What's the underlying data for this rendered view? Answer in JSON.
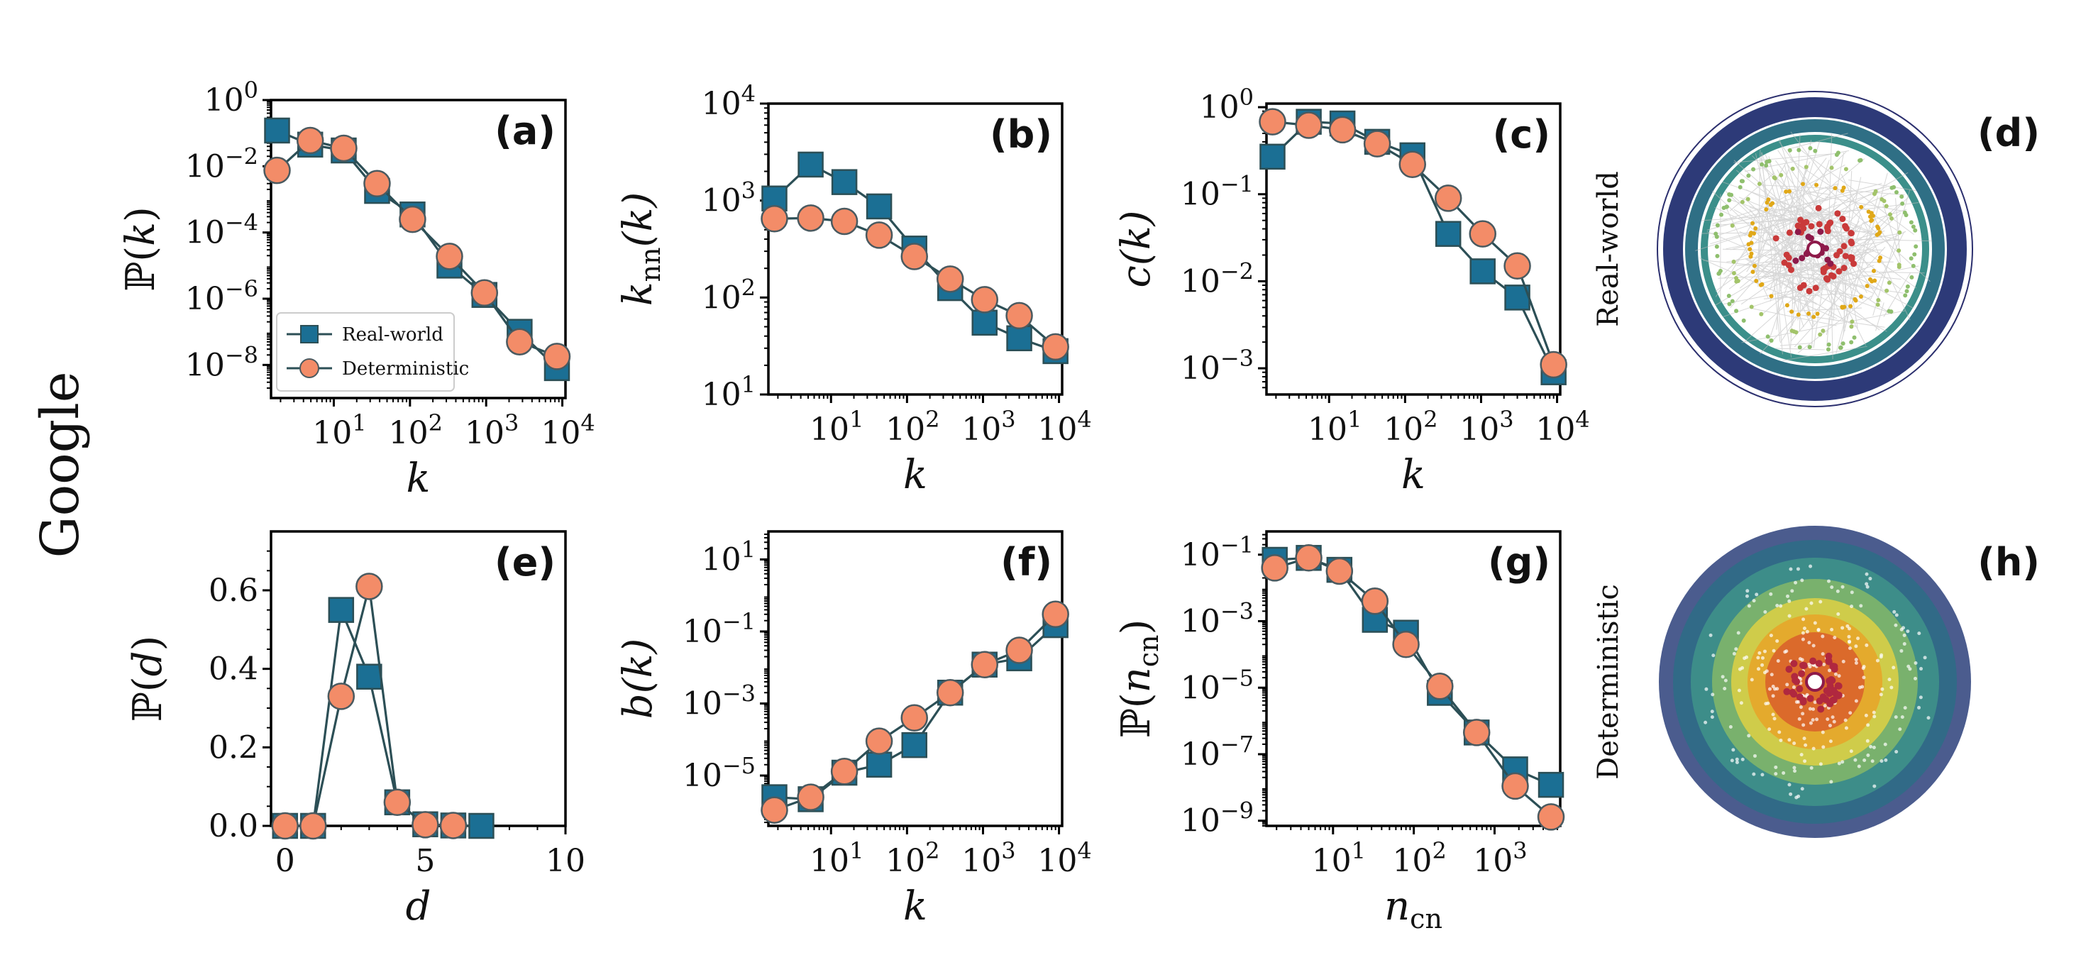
{
  "figure": {
    "row_label": "Google",
    "colors": {
      "real": "#1b6f94",
      "det": "#f38c68",
      "line": "#2c4f56",
      "edge": "#4a5a60"
    },
    "legend": {
      "real": "Real-world",
      "det": "Deterministic",
      "placement": "lower-left"
    }
  },
  "chart_data": [
    {
      "id": "a",
      "panel_label": "(a)",
      "type": "line",
      "xscale": "log",
      "yscale": "log",
      "xlabel": "k",
      "ylabel": "ℙ(k)",
      "xlim": [
        1.5,
        11000
      ],
      "ylim": [
        1e-09,
        1
      ],
      "xticks": [
        {
          "v": 10,
          "b": "10",
          "e": "1"
        },
        {
          "v": 100,
          "b": "10",
          "e": "2"
        },
        {
          "v": 1000,
          "b": "10",
          "e": "3"
        },
        {
          "v": 10000,
          "b": "10",
          "e": "4"
        }
      ],
      "yticks": [
        {
          "v": 1,
          "b": "10",
          "e": "0"
        },
        {
          "v": 0.01,
          "b": "10",
          "e": "−2"
        },
        {
          "v": 0.0001,
          "b": "10",
          "e": "−4"
        },
        {
          "v": 1e-06,
          "b": "10",
          "e": "−6"
        },
        {
          "v": 1e-08,
          "b": "10",
          "e": "−8"
        }
      ],
      "legend": true,
      "series": [
        {
          "name": "Real-world",
          "key": "real",
          "x": [
            1.8,
            4.9,
            13.5,
            37,
            108,
            330,
            950,
            2750,
            8500
          ],
          "y": [
            0.12,
            0.045,
            0.03,
            0.0018,
            0.00035,
            1e-05,
            1.3e-06,
            1e-07,
            8e-09
          ]
        },
        {
          "name": "Deterministic",
          "key": "det",
          "x": [
            1.8,
            4.9,
            13.5,
            37,
            108,
            330,
            950,
            2750,
            8500
          ],
          "y": [
            0.0075,
            0.06,
            0.035,
            0.003,
            0.00025,
            1.9e-05,
            1.5e-06,
            5e-08,
            1.8e-08
          ]
        }
      ]
    },
    {
      "id": "b",
      "panel_label": "(b)",
      "type": "line",
      "xscale": "log",
      "yscale": "log",
      "xlabel": "k",
      "ylabel": "k_nn(k)",
      "xlim": [
        1.5,
        11000
      ],
      "ylim": [
        10,
        10000
      ],
      "xticks": [
        {
          "v": 10,
          "b": "10",
          "e": "1"
        },
        {
          "v": 100,
          "b": "10",
          "e": "2"
        },
        {
          "v": 1000,
          "b": "10",
          "e": "3"
        },
        {
          "v": 10000,
          "b": "10",
          "e": "4"
        }
      ],
      "yticks": [
        {
          "v": 10,
          "b": "10",
          "e": "1"
        },
        {
          "v": 100,
          "b": "10",
          "e": "2"
        },
        {
          "v": 1000,
          "b": "10",
          "e": "3"
        },
        {
          "v": 10000,
          "b": "10",
          "e": "4"
        }
      ],
      "series": [
        {
          "name": "Real-world",
          "key": "real",
          "x": [
            1.8,
            5.4,
            15,
            43,
            125,
            370,
            1050,
            3000,
            9000
          ],
          "y": [
            1050,
            2350,
            1550,
            870,
            320,
            125,
            55,
            38,
            28
          ]
        },
        {
          "name": "Deterministic",
          "key": "det",
          "x": [
            1.8,
            5.4,
            15,
            43,
            125,
            370,
            1050,
            3000,
            9000
          ],
          "y": [
            650,
            660,
            610,
            440,
            265,
            155,
            95,
            65,
            31
          ]
        }
      ]
    },
    {
      "id": "c",
      "panel_label": "(c)",
      "type": "line",
      "xscale": "log",
      "yscale": "log",
      "xlabel": "k",
      "ylabel": "c(k)",
      "xlim": [
        1.5,
        11000
      ],
      "ylim": [
        0.0005,
        1.1
      ],
      "xticks": [
        {
          "v": 10,
          "b": "10",
          "e": "1"
        },
        {
          "v": 100,
          "b": "10",
          "e": "2"
        },
        {
          "v": 1000,
          "b": "10",
          "e": "3"
        },
        {
          "v": 10000,
          "b": "10",
          "e": "4"
        }
      ],
      "yticks": [
        {
          "v": 1,
          "b": "10",
          "e": "0"
        },
        {
          "v": 0.1,
          "b": "10",
          "e": "−1"
        },
        {
          "v": 0.01,
          "b": "10",
          "e": "−2"
        },
        {
          "v": 0.001,
          "b": "10",
          "e": "−3"
        }
      ],
      "series": [
        {
          "name": "Real-world",
          "key": "real",
          "x": [
            1.8,
            5.4,
            15,
            43,
            125,
            370,
            1050,
            3000,
            9000
          ],
          "y": [
            0.27,
            0.68,
            0.65,
            0.4,
            0.28,
            0.035,
            0.013,
            0.0065,
            0.0009
          ]
        },
        {
          "name": "Deterministic",
          "key": "det",
          "x": [
            1.8,
            5.4,
            15,
            43,
            125,
            370,
            1050,
            3000,
            9000
          ],
          "y": [
            0.68,
            0.62,
            0.55,
            0.38,
            0.22,
            0.09,
            0.035,
            0.015,
            0.0011
          ]
        }
      ]
    },
    {
      "id": "e",
      "panel_label": "(e)",
      "type": "line",
      "xscale": "linear",
      "yscale": "linear",
      "xlabel": "d",
      "ylabel": "ℙ(d)",
      "xlim": [
        -0.5,
        10
      ],
      "ylim": [
        0,
        0.75
      ],
      "xticks": [
        {
          "v": 0,
          "b": "0"
        },
        {
          "v": 5,
          "b": "5"
        },
        {
          "v": 10,
          "b": "10"
        }
      ],
      "yticks": [
        {
          "v": 0,
          "b": "0.0"
        },
        {
          "v": 0.2,
          "b": "0.2"
        },
        {
          "v": 0.4,
          "b": "0.4"
        },
        {
          "v": 0.6,
          "b": "0.6"
        }
      ],
      "series": [
        {
          "name": "Real-world",
          "key": "real",
          "x": [
            0,
            1,
            2,
            3,
            4,
            5,
            6,
            7
          ],
          "y": [
            0.0,
            0.0,
            0.55,
            0.38,
            0.06,
            0.004,
            0.001,
            0.0
          ]
        },
        {
          "name": "Deterministic",
          "key": "det",
          "x": [
            0,
            1,
            2,
            3,
            4,
            5,
            6
          ],
          "y": [
            0.0,
            0.0,
            0.33,
            0.61,
            0.06,
            0.003,
            0.001
          ]
        }
      ]
    },
    {
      "id": "f",
      "panel_label": "(f)",
      "type": "line",
      "xscale": "log",
      "yscale": "log",
      "xlabel": "k",
      "ylabel": "b(k)",
      "xlim": [
        1.5,
        11000
      ],
      "ylim": [
        4e-07,
        60
      ],
      "xticks": [
        {
          "v": 10,
          "b": "10",
          "e": "1"
        },
        {
          "v": 100,
          "b": "10",
          "e": "2"
        },
        {
          "v": 1000,
          "b": "10",
          "e": "3"
        },
        {
          "v": 10000,
          "b": "10",
          "e": "4"
        }
      ],
      "yticks": [
        {
          "v": 10,
          "b": "10",
          "e": "1"
        },
        {
          "v": 0.1,
          "b": "10",
          "e": "−1"
        },
        {
          "v": 0.001,
          "b": "10",
          "e": "−3"
        },
        {
          "v": 1e-05,
          "b": "10",
          "e": "−5"
        }
      ],
      "series": [
        {
          "name": "Real-world",
          "key": "real",
          "x": [
            1.8,
            5.4,
            15,
            43,
            125,
            370,
            1050,
            3000,
            9000
          ],
          "y": [
            2.5e-06,
            2.2e-06,
            1.2e-05,
            2e-05,
            7e-05,
            0.002,
            0.012,
            0.018,
            0.15
          ]
        },
        {
          "name": "Deterministic",
          "key": "det",
          "x": [
            1.8,
            5.4,
            15,
            43,
            125,
            370,
            1050,
            3000,
            9000
          ],
          "y": [
            1.1e-06,
            2.5e-06,
            1.3e-05,
            9e-05,
            0.0004,
            0.002,
            0.012,
            0.03,
            0.3
          ]
        }
      ]
    },
    {
      "id": "g",
      "panel_label": "(g)",
      "type": "line",
      "xscale": "log",
      "yscale": "log",
      "xlabel": "n_cn",
      "ylabel": "ℙ(n_cn)",
      "xlim": [
        1.5,
        6500
      ],
      "ylim": [
        7e-10,
        0.5
      ],
      "xticks": [
        {
          "v": 10,
          "b": "10",
          "e": "1"
        },
        {
          "v": 100,
          "b": "10",
          "e": "2"
        },
        {
          "v": 1000,
          "b": "10",
          "e": "3"
        }
      ],
      "yticks": [
        {
          "v": 0.1,
          "b": "10",
          "e": "−1"
        },
        {
          "v": 0.001,
          "b": "10",
          "e": "−3"
        },
        {
          "v": 1e-05,
          "b": "10",
          "e": "−5"
        },
        {
          "v": 1e-07,
          "b": "10",
          "e": "−7"
        },
        {
          "v": 1e-09,
          "b": "10",
          "e": "−9"
        }
      ],
      "series": [
        {
          "name": "Real-world",
          "key": "real",
          "x": [
            1.9,
            5,
            12,
            33,
            80,
            210,
            600,
            1800,
            5000
          ],
          "y": [
            0.07,
            0.08,
            0.035,
            0.0011,
            0.00045,
            7e-06,
            4.5e-07,
            3.5e-08,
            1.2e-08
          ]
        },
        {
          "name": "Deterministic",
          "key": "det",
          "x": [
            1.9,
            5,
            12,
            33,
            80,
            210,
            600,
            1800,
            5000
          ],
          "y": [
            0.04,
            0.08,
            0.032,
            0.004,
            0.0002,
            1.1e-05,
            4.5e-07,
            1.1e-08,
            1.3e-09
          ]
        }
      ]
    }
  ],
  "networks": [
    {
      "id": "d",
      "panel_label": "(d)",
      "side_label": "Real-world"
    },
    {
      "id": "h",
      "panel_label": "(h)",
      "side_label": "Deterministic"
    }
  ]
}
